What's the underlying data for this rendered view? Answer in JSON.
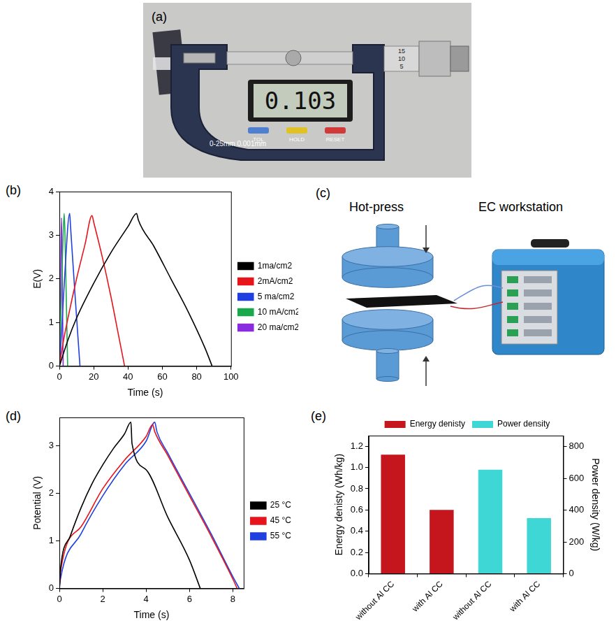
{
  "photo": {
    "panel": "(a)",
    "display": "0.103",
    "range_label": "0-25mm",
    "resolution_label": "0.001mm",
    "buttons": [
      "TOL",
      "HOLD",
      "RESET"
    ],
    "thimble_marks": [
      "15",
      "10",
      "5"
    ]
  },
  "diagram": {
    "panel": "(c)",
    "labels": [
      "Hot-press",
      "EC workstation"
    ]
  },
  "chart_data": [
    {
      "panel": "(b)",
      "type": "line",
      "x_label": "Time (s)",
      "y_label": "E(V)",
      "xlim": [
        0,
        100
      ],
      "xticks": [
        0,
        20,
        40,
        60,
        80,
        100
      ],
      "ylim": [
        0,
        4
      ],
      "yticks": [
        0,
        1,
        2,
        3,
        4
      ],
      "grid": false,
      "legend": "right",
      "series": [
        {
          "name": "1ma/cm2",
          "color": "#000000",
          "x": [
            0,
            5,
            10,
            20,
            30,
            40,
            45,
            46,
            55,
            65,
            75,
            85,
            89
          ],
          "values": [
            0,
            0.6,
            1.1,
            1.9,
            2.6,
            3.2,
            3.5,
            3.35,
            2.75,
            2.0,
            1.25,
            0.4,
            0
          ]
        },
        {
          "name": "2mA/cm2",
          "color": "#e8141c",
          "x": [
            0,
            2,
            5,
            10,
            15,
            19,
            20,
            25,
            30,
            35,
            38
          ],
          "values": [
            0,
            0.5,
            1.1,
            2.0,
            2.8,
            3.45,
            3.3,
            2.5,
            1.6,
            0.6,
            0
          ]
        },
        {
          "name": "5 ma/cm2",
          "color": "#1f3fe0",
          "x": [
            0,
            1,
            3,
            6,
            6.5,
            9,
            12
          ],
          "values": [
            0,
            0.6,
            2.0,
            3.5,
            3.2,
            1.7,
            0
          ]
        },
        {
          "name": "10 mA/cm2",
          "color": "#1aa84a",
          "x": [
            0,
            0.5,
            2,
            2.8,
            3.2,
            4.5,
            4.8
          ],
          "values": [
            0,
            0.8,
            2.8,
            3.5,
            3.1,
            0.6,
            0
          ]
        },
        {
          "name": "20 ma/cm2",
          "color": "#8a2be2",
          "x": [
            0,
            0.6,
            1.2,
            1.5,
            2.2
          ],
          "values": [
            0,
            1.8,
            3.4,
            2.6,
            0
          ]
        }
      ]
    },
    {
      "panel": "(d)",
      "type": "line",
      "x_label": "Time (s)",
      "y_label": "Potential (V)",
      "xlim": [
        0,
        8.5
      ],
      "xticks": [
        0,
        2,
        4,
        6,
        8
      ],
      "ylim": [
        0,
        3.6
      ],
      "yticks": [
        0,
        1,
        2,
        3
      ],
      "grid": false,
      "legend": "right",
      "series": [
        {
          "name": "25 °C",
          "color": "#000000",
          "x": [
            0,
            0.05,
            0.5,
            1,
            1.5,
            2,
            2.5,
            3,
            3.3,
            3.35,
            4,
            5,
            6,
            6.5
          ],
          "values": [
            0,
            0.4,
            1.1,
            1.7,
            2.2,
            2.6,
            2.95,
            3.25,
            3.5,
            3.05,
            2.5,
            1.5,
            0.6,
            0
          ]
        },
        {
          "name": "45 °C",
          "color": "#e8141c",
          "x": [
            0,
            0.05,
            1,
            2,
            3,
            4,
            4.3,
            4.4,
            5,
            6,
            7,
            8,
            8.2
          ],
          "values": [
            0,
            0.35,
            1.3,
            2.1,
            2.7,
            3.2,
            3.45,
            3.3,
            2.8,
            1.95,
            1.1,
            0.2,
            0
          ]
        },
        {
          "name": "55 °C",
          "color": "#1f3fe0",
          "x": [
            0,
            0.05,
            1,
            2,
            3,
            4,
            4.4,
            4.5,
            5,
            6,
            7,
            8,
            8.3
          ],
          "values": [
            0,
            0.2,
            1.15,
            1.95,
            2.6,
            3.1,
            3.5,
            3.3,
            2.85,
            2.0,
            1.15,
            0.25,
            0
          ]
        }
      ]
    },
    {
      "panel": "(e)",
      "type": "bar",
      "categories": [
        "without Al CC",
        "with Al CC",
        "without Al CC",
        "with Al CC"
      ],
      "y_label": "Energy denisty (Wh/kg)",
      "y2_label": "Power density (W/kg)",
      "ylim": [
        0,
        1.3
      ],
      "yticks": [
        {
          "value": 0,
          "label": "0.0"
        },
        0.2,
        0.4,
        0.6,
        0.8,
        {
          "value": 1,
          "label": "1.0"
        },
        1.2
      ],
      "y2lim": [
        0,
        870
      ],
      "y2ticks": [
        0,
        200,
        400,
        600,
        800
      ],
      "grid": false,
      "legend": "top",
      "series": [
        {
          "name": "Energy denisty",
          "color": "#c4161c",
          "values": [
            1.12,
            0.6,
            null,
            null
          ]
        },
        {
          "name": "Power density",
          "color": "#3fd6d6",
          "axis": "y2",
          "values": [
            null,
            null,
            655,
            350
          ]
        }
      ]
    }
  ]
}
